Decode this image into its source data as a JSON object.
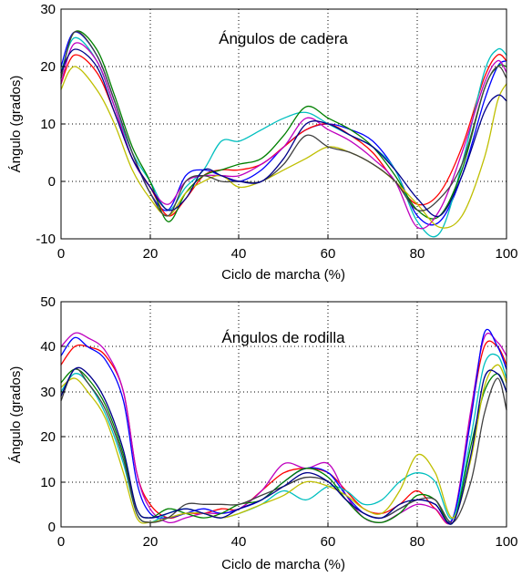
{
  "chart_data": [
    {
      "type": "line",
      "title": "Ángulos de cadera",
      "xlabel": "Ciclo de marcha (%)",
      "ylabel": "Ángulo (grados)",
      "xlim": [
        0,
        100
      ],
      "ylim": [
        -10,
        30
      ],
      "xticks": [
        "0",
        "20",
        "40",
        "60",
        "80",
        "100"
      ],
      "yticks": [
        "-10",
        "0",
        "10",
        "20",
        "30"
      ],
      "grid": true,
      "x": [
        0,
        3,
        8,
        12,
        16,
        20,
        24,
        28,
        32,
        36,
        40,
        45,
        50,
        55,
        60,
        65,
        70,
        75,
        80,
        85,
        90,
        95,
        98,
        100
      ],
      "series": [
        {
          "color": "#0000ff",
          "values": [
            20,
            26,
            22,
            14,
            5,
            -2,
            -5,
            1,
            2,
            1,
            0,
            2,
            6,
            9,
            10,
            9,
            7,
            2,
            -6,
            -7,
            1,
            14,
            20,
            21
          ]
        },
        {
          "color": "#ff0000",
          "values": [
            17,
            22,
            19,
            12,
            4,
            -1,
            -6,
            -3,
            1,
            2,
            2,
            3,
            6,
            9,
            10,
            8,
            5,
            0,
            -4,
            -2,
            6,
            18,
            22,
            21
          ]
        },
        {
          "color": "#00bfbf",
          "values": [
            19,
            25,
            21,
            13,
            5,
            0,
            -5,
            -1,
            2,
            7,
            7,
            9,
            11,
            12,
            10,
            8,
            6,
            2,
            -7,
            -9,
            3,
            19,
            23,
            22
          ]
        },
        {
          "color": "#008000",
          "values": [
            18,
            26,
            23,
            15,
            6,
            0,
            -7,
            -2,
            1,
            2,
            3,
            4,
            8,
            13,
            11,
            9,
            6,
            1,
            -5,
            -6,
            2,
            16,
            20,
            20
          ]
        },
        {
          "color": "#bf00bf",
          "values": [
            17,
            24,
            21,
            13,
            4,
            -1,
            -4,
            0,
            1,
            1,
            1,
            3,
            6,
            11,
            9,
            7,
            4,
            0,
            -8,
            -5,
            5,
            17,
            21,
            19
          ]
        },
        {
          "color": "#bfbf00",
          "values": [
            16,
            20,
            16,
            10,
            2,
            -3,
            -6,
            -2,
            0,
            1,
            -1,
            0,
            2,
            4,
            6,
            5,
            3,
            0,
            -4,
            -8,
            -6,
            4,
            14,
            17
          ]
        },
        {
          "color": "#404040",
          "values": [
            18,
            26,
            22,
            14,
            5,
            -2,
            -6,
            0,
            1,
            0,
            0,
            0,
            3,
            8,
            6,
            5,
            3,
            0,
            -5,
            -3,
            3,
            16,
            20,
            18
          ]
        },
        {
          "color": "#00008b",
          "values": [
            19,
            23,
            20,
            12,
            4,
            -1,
            -5,
            -3,
            2,
            1,
            0,
            0,
            4,
            10,
            10,
            8,
            6,
            2,
            -3,
            -6,
            1,
            12,
            15,
            14
          ]
        }
      ]
    },
    {
      "type": "line",
      "title": "Ángulos de rodilla",
      "xlabel": "Ciclo de marcha (%)",
      "ylabel": "Ángulo (grados)",
      "xlim": [
        0,
        100
      ],
      "ylim": [
        0,
        50
      ],
      "xticks": [
        "0",
        "20",
        "40",
        "60",
        "80",
        "100"
      ],
      "yticks": [
        "0",
        "10",
        "20",
        "30",
        "40",
        "50"
      ],
      "grid": true,
      "x": [
        0,
        3,
        6,
        10,
        14,
        17,
        20,
        24,
        28,
        32,
        36,
        40,
        45,
        50,
        55,
        60,
        64,
        68,
        72,
        76,
        80,
        84,
        88,
        92,
        95,
        98,
        100
      ],
      "series": [
        {
          "color": "#ff0000",
          "values": [
            36,
            40,
            40,
            38,
            30,
            12,
            5,
            2,
            3,
            3,
            4,
            4,
            8,
            12,
            13,
            12,
            8,
            4,
            3,
            5,
            8,
            4,
            2,
            25,
            40,
            40,
            36
          ]
        },
        {
          "color": "#bf00bf",
          "values": [
            40,
            43,
            42,
            39,
            30,
            12,
            4,
            1,
            2,
            3,
            3,
            4,
            8,
            14,
            13,
            14,
            7,
            2,
            1,
            3,
            5,
            4,
            2,
            26,
            42,
            41,
            38
          ]
        },
        {
          "color": "#0000ff",
          "values": [
            38,
            42,
            40,
            37,
            28,
            10,
            3,
            2,
            3,
            4,
            3,
            4,
            6,
            10,
            13,
            12,
            7,
            3,
            2,
            4,
            6,
            5,
            2,
            24,
            43,
            40,
            35
          ]
        },
        {
          "color": "#00bfbf",
          "values": [
            30,
            34,
            32,
            25,
            14,
            3,
            1,
            3,
            4,
            3,
            2,
            3,
            5,
            8,
            6,
            9,
            8,
            5,
            6,
            10,
            12,
            10,
            2,
            20,
            36,
            38,
            33
          ]
        },
        {
          "color": "#008000",
          "values": [
            32,
            35,
            33,
            27,
            16,
            4,
            2,
            4,
            3,
            2,
            3,
            5,
            6,
            10,
            13,
            11,
            6,
            2,
            1,
            3,
            7,
            6,
            1,
            18,
            30,
            34,
            30
          ]
        },
        {
          "color": "#bfbf00",
          "values": [
            31,
            33,
            30,
            24,
            12,
            2,
            1,
            2,
            3,
            3,
            2,
            3,
            5,
            7,
            10,
            9,
            7,
            4,
            3,
            8,
            16,
            12,
            2,
            15,
            31,
            36,
            32
          ]
        },
        {
          "color": "#404040",
          "values": [
            28,
            35,
            32,
            26,
            15,
            3,
            1,
            2,
            5,
            5,
            5,
            5,
            7,
            9,
            11,
            10,
            6,
            3,
            2,
            4,
            6,
            6,
            1,
            10,
            25,
            33,
            26
          ]
        },
        {
          "color": "#00008b",
          "values": [
            29,
            35,
            34,
            28,
            17,
            4,
            2,
            3,
            4,
            3,
            2,
            4,
            6,
            9,
            12,
            10,
            6,
            3,
            2,
            5,
            6,
            5,
            1,
            16,
            33,
            34,
            30
          ]
        }
      ]
    }
  ]
}
